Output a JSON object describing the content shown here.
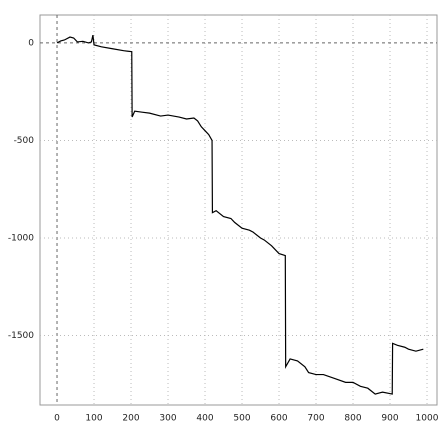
{
  "chart_data": {
    "type": "line",
    "x": [
      0,
      10,
      20,
      35,
      45,
      55,
      70,
      85,
      93,
      97,
      100,
      120,
      150,
      180,
      202,
      203,
      210,
      230,
      250,
      280,
      300,
      330,
      350,
      370,
      380,
      390,
      400,
      410,
      419,
      420,
      430,
      450,
      470,
      480,
      500,
      520,
      530,
      550,
      560,
      580,
      600,
      617,
      618,
      630,
      650,
      670,
      680,
      700,
      720,
      750,
      780,
      800,
      820,
      840,
      860,
      880,
      906,
      907,
      920,
      940,
      950,
      970,
      990
    ],
    "y": [
      0,
      10,
      15,
      30,
      25,
      5,
      8,
      0,
      5,
      40,
      -10,
      -20,
      -30,
      -40,
      -45,
      -380,
      -350,
      -355,
      -360,
      -375,
      -370,
      -380,
      -390,
      -385,
      -400,
      -430,
      -450,
      -470,
      -500,
      -870,
      -860,
      -890,
      -900,
      -920,
      -950,
      -960,
      -970,
      -1000,
      -1010,
      -1040,
      -1080,
      -1090,
      -1660,
      -1620,
      -1630,
      -1660,
      -1690,
      -1700,
      -1700,
      -1720,
      -1740,
      -1740,
      -1760,
      -1770,
      -1800,
      -1790,
      -1800,
      -1540,
      -1550,
      -1560,
      -1570,
      -1580,
      -1570
    ],
    "color": "#000000",
    "xlim": [
      -46,
      1027
    ],
    "ylim": [
      -1856,
      143
    ],
    "xticks": [
      0,
      100,
      200,
      300,
      400,
      500,
      600,
      700,
      800,
      900,
      1000
    ],
    "yticks": [
      0,
      -500,
      -1000,
      -1500
    ],
    "grid": true
  }
}
